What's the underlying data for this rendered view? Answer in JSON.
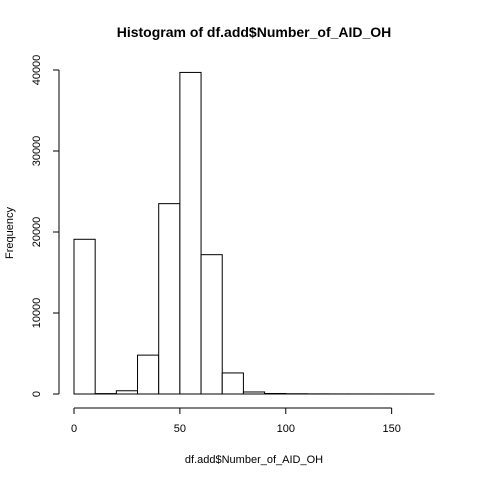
{
  "chart_data": {
    "type": "bar",
    "title": "Histogram of df.add$Number_of_AID_OH",
    "xlabel": "df.add$Number_of_AID_OH",
    "ylabel": "Frequency",
    "xlim": [
      0,
      170
    ],
    "ylim": [
      0,
      40000
    ],
    "x_ticks": [
      0,
      50,
      100,
      150
    ],
    "y_ticks": [
      0,
      10000,
      20000,
      30000,
      40000
    ],
    "bins": [
      {
        "start": 0,
        "end": 10,
        "count": 19100
      },
      {
        "start": 10,
        "end": 20,
        "count": 50
      },
      {
        "start": 20,
        "end": 30,
        "count": 400
      },
      {
        "start": 30,
        "end": 40,
        "count": 4800
      },
      {
        "start": 40,
        "end": 50,
        "count": 23500
      },
      {
        "start": 50,
        "end": 60,
        "count": 39700
      },
      {
        "start": 60,
        "end": 70,
        "count": 17200
      },
      {
        "start": 70,
        "end": 80,
        "count": 2600
      },
      {
        "start": 80,
        "end": 90,
        "count": 250
      },
      {
        "start": 90,
        "end": 100,
        "count": 60
      },
      {
        "start": 100,
        "end": 110,
        "count": 30
      },
      {
        "start": 110,
        "end": 120,
        "count": 15
      },
      {
        "start": 120,
        "end": 130,
        "count": 8
      },
      {
        "start": 130,
        "end": 140,
        "count": 5
      },
      {
        "start": 140,
        "end": 150,
        "count": 3
      },
      {
        "start": 150,
        "end": 160,
        "count": 2
      },
      {
        "start": 160,
        "end": 170,
        "count": 1
      }
    ]
  }
}
